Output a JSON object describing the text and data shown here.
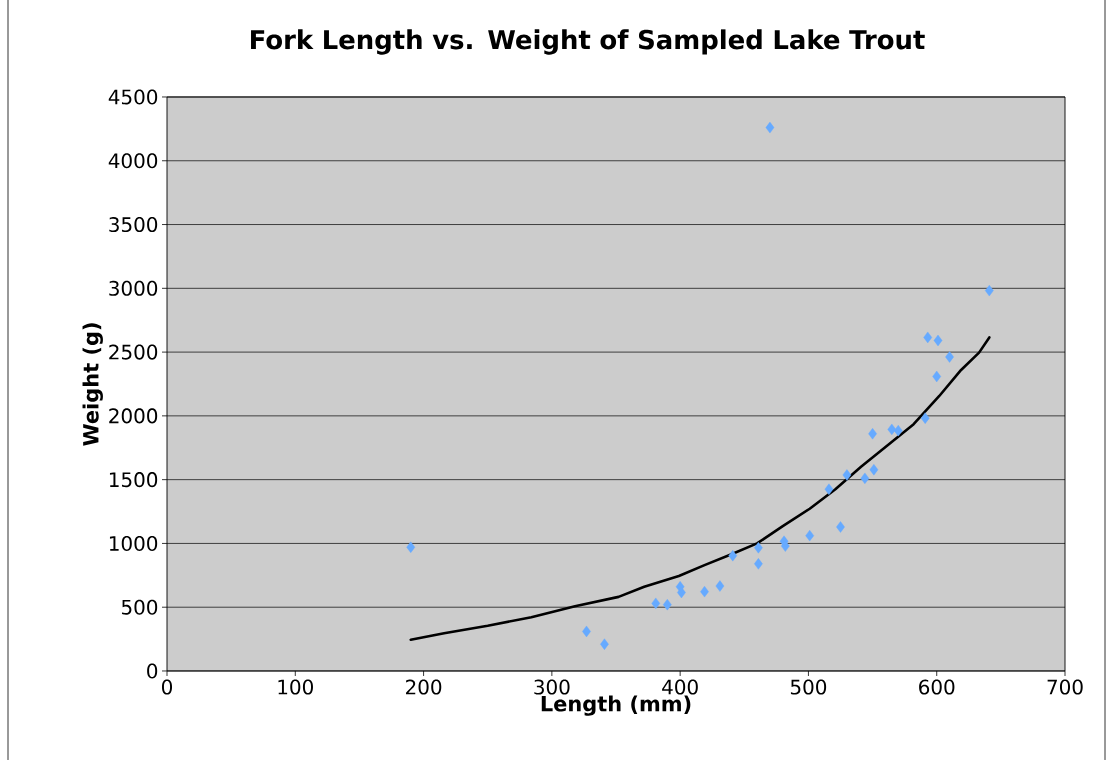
{
  "chart_data": {
    "type": "scatter",
    "title": "Fork Length vs. Weight of Sampled Lake Trout",
    "xlabel": "Length (mm)",
    "ylabel": "Weight (g)",
    "xlim": [
      0,
      700
    ],
    "xticks": [
      0,
      100,
      200,
      300,
      400,
      500,
      600,
      700
    ],
    "ylim": [
      0,
      4500
    ],
    "yticks": [
      0,
      500,
      1000,
      1500,
      2000,
      2500,
      3000,
      3500,
      4000,
      4500
    ],
    "grid": "y",
    "series": [
      {
        "color": "#66aaff",
        "marker": "diamond",
        "x": [
          190,
          327,
          341,
          381,
          390,
          400,
          401,
          419,
          431,
          441,
          461,
          461,
          470,
          481,
          482,
          501,
          525,
          516,
          530,
          544,
          551,
          550,
          565,
          570,
          591,
          600,
          593,
          601,
          610,
          641
        ],
        "values": [
          970,
          310,
          210,
          530,
          520,
          660,
          615,
          622,
          666,
          904,
          966,
          840,
          4260,
          1017,
          979,
          1061,
          1129,
          1425,
          1537,
          1510,
          1578,
          1860,
          1894,
          1884,
          1982,
          2309,
          2615,
          2591,
          2462,
          2982
        ]
      },
      {
        "type": "line",
        "color": "#000000",
        "marker": "none",
        "line_style": "solid",
        "x": [
          190,
          216,
          250,
          284,
          318,
          352,
          372,
          399,
          419,
          440,
          460,
          480,
          501,
          521,
          541,
          562,
          582,
          602,
          619,
          633,
          641
        ],
        "values": [
          245,
          296,
          354,
          422,
          507,
          581,
          660,
          745,
          830,
          915,
          1000,
          1136,
          1272,
          1425,
          1601,
          1771,
          1935,
          2156,
          2360,
          2496,
          2615
        ]
      }
    ]
  }
}
